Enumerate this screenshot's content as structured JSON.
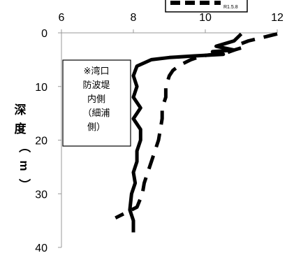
{
  "chart_data": {
    "type": "line",
    "xlim": [
      6,
      12
    ],
    "ylim": [
      0,
      40
    ],
    "y_inverted": true,
    "x_axis_position": "top",
    "x_ticks": [
      "6",
      "8",
      "10",
      "12"
    ],
    "y_ticks": [
      "0",
      "10",
      "20",
      "30",
      "40"
    ],
    "ylabel": "深度（m）",
    "grid": false,
    "annotation": [
      "※湾口",
      "防波堤",
      "内側",
      "（細浦",
      "側）"
    ],
    "legend_fragment": "R1.5.8",
    "series": [
      {
        "style": "solid",
        "color": "#000000",
        "x": [
          11.0,
          10.8,
          10.3,
          10.8,
          10.2,
          10.5,
          9.7,
          9.0,
          8.5,
          8.1,
          8.0,
          8.1,
          8.0,
          8.2,
          8.0,
          8.2,
          8.2,
          8.1,
          8.1,
          8.0,
          8.05,
          7.95,
          7.9,
          8.0,
          8.0
        ],
        "y": [
          0.2,
          1.5,
          2.5,
          3.2,
          3.5,
          4.0,
          4.3,
          4.6,
          5.0,
          6.2,
          8.0,
          10.0,
          12.0,
          14.0,
          16.0,
          18.0,
          20.0,
          22.0,
          24.0,
          26.0,
          28.0,
          30.0,
          33.0,
          35.0,
          37.2
        ]
      },
      {
        "style": "dashed",
        "color": "#000000",
        "x": [
          12.0,
          11.2,
          11.0,
          11.1,
          10.8,
          10.6,
          9.9,
          9.6,
          9.3,
          9.1,
          9.0,
          8.9,
          8.9,
          8.8,
          8.8,
          8.75,
          8.7,
          8.6,
          8.5,
          8.4,
          8.3,
          8.25,
          8.1,
          7.5
        ],
        "y": [
          0.2,
          1.5,
          2.0,
          2.6,
          3.2,
          3.7,
          4.3,
          5.0,
          6.0,
          7.0,
          8.0,
          10.0,
          12.0,
          14.0,
          16.0,
          18.0,
          20.0,
          22.0,
          24.0,
          26.0,
          28.0,
          30.0,
          32.5,
          34.5
        ]
      }
    ]
  }
}
